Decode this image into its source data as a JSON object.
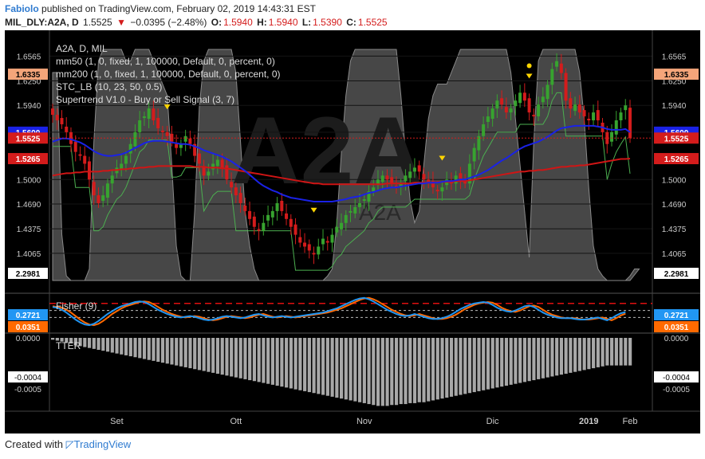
{
  "header": {
    "user": "Fabiolo",
    "published_text": "published on TradingView.com, February 02, 2019 14:43:31 EST",
    "symbol": "MIL_DLY:A2A, D",
    "last": "1.5525",
    "change_arrow": "▼",
    "change": "−0.0395 (−2.48%)",
    "o_label": "O:",
    "o": "1.5940",
    "h_label": "H:",
    "h": "1.5940",
    "l_label": "L:",
    "l": "1.5390",
    "c_label": "C:",
    "c": "1.5525"
  },
  "legend": {
    "line1": "A2A, D, MIL",
    "line2": "mm50 (1, 0, fixed, 1, 100000, Default, 0, percent, 0)",
    "line3": "mm200 (1, 0, fixed, 1, 100000, Default, 0, percent, 0)",
    "line4": "STC_LB (10, 23, 50, 0.5)",
    "line5": "Supertrend V1.0 - Buy or Sell Signal (3, 7)"
  },
  "watermark": {
    "big": "A2A",
    "small": "A2A"
  },
  "fisher_label": "Fisher (9)",
  "tter_label": "TTER",
  "footer": {
    "text": "Created with",
    "brand": "TradingView"
  },
  "colors": {
    "up": "#37a32f",
    "down": "#d41c1c",
    "mm50": "#1a22e6",
    "mm200": "#d01515",
    "stc": "#6e6e6e",
    "supertrend_up": "#4caf50",
    "supertrend_down": "#c8825a",
    "fisher": "#2196f3",
    "fisher_trigger": "#ff6a00",
    "hist": "#a8a8a8",
    "signal": "#ffd600"
  },
  "chart_data": [
    {
      "type": "candlestick",
      "title": "A2A, D, MIL",
      "y_ticks": [
        "1.6565",
        "1.6250",
        "1.5940",
        "1.5600",
        "1.5000",
        "1.4690",
        "1.4375",
        "1.4065",
        "2.2981"
      ],
      "y_range": [
        1.37,
        1.675
      ],
      "price_badges": [
        {
          "value": "1.6335",
          "color": "#f4a57a",
          "text_color": "#000"
        },
        {
          "value": "1.5600",
          "color": "#1a22e6",
          "text_color": "#fff"
        },
        {
          "value": "1.5525",
          "color": "#d41c1c",
          "text_color": "#fff"
        },
        {
          "value": "1.5265",
          "color": "#d41c1c",
          "text_color": "#fff"
        },
        {
          "value": "2.2981",
          "color": "#ffffff",
          "text_color": "#000"
        }
      ],
      "x_labels": [
        "Set",
        "Ott",
        "Nov",
        "Dic",
        "2019",
        "Feb"
      ],
      "close": [
        1.582,
        1.575,
        1.57,
        1.56,
        1.545,
        1.535,
        1.53,
        1.52,
        1.5,
        1.48,
        1.47,
        1.48,
        1.495,
        1.505,
        1.515,
        1.52,
        1.53,
        1.545,
        1.56,
        1.575,
        1.58,
        1.59,
        1.575,
        1.565,
        1.56,
        1.555,
        1.548,
        1.54,
        1.545,
        1.555,
        1.545,
        1.53,
        1.52,
        1.505,
        1.51,
        1.52,
        1.525,
        1.515,
        1.5,
        1.49,
        1.48,
        1.47,
        1.46,
        1.45,
        1.44,
        1.435,
        1.445,
        1.455,
        1.46,
        1.47,
        1.46,
        1.45,
        1.44,
        1.43,
        1.42,
        1.415,
        1.41,
        1.405,
        1.415,
        1.425,
        1.42,
        1.43,
        1.44,
        1.445,
        1.455,
        1.46,
        1.465,
        1.47,
        1.475,
        1.485,
        1.49,
        1.5,
        1.505,
        1.5,
        1.495,
        1.49,
        1.495,
        1.505,
        1.51,
        1.515,
        1.51,
        1.5,
        1.495,
        1.49,
        1.485,
        1.49,
        1.5,
        1.495,
        1.505,
        1.5,
        1.495,
        1.52,
        1.54,
        1.555,
        1.57,
        1.58,
        1.59,
        1.6,
        1.595,
        1.585,
        1.59,
        1.6,
        1.61,
        1.6,
        1.585,
        1.58,
        1.595,
        1.605,
        1.62,
        1.64,
        1.65,
        1.635,
        1.6,
        1.59,
        1.595,
        1.585,
        1.58,
        1.575,
        1.585,
        1.575,
        1.56,
        1.545,
        1.56,
        1.575,
        1.585,
        1.594,
        1.5525
      ],
      "mm50": [
        1.548,
        1.55,
        1.552,
        1.552,
        1.551,
        1.549,
        1.547,
        1.544,
        1.54,
        1.536,
        1.533,
        1.531,
        1.53,
        1.53,
        1.531,
        1.532,
        1.534,
        1.537,
        1.54,
        1.543,
        1.546,
        1.548,
        1.549,
        1.549,
        1.549,
        1.548,
        1.547,
        1.546,
        1.545,
        1.545,
        1.544,
        1.542,
        1.54,
        1.537,
        1.535,
        1.533,
        1.531,
        1.529,
        1.526,
        1.523,
        1.519,
        1.515,
        1.511,
        1.506,
        1.501,
        1.496,
        1.492,
        1.489,
        1.486,
        1.484,
        1.481,
        1.479,
        1.477,
        1.476,
        1.475,
        1.474,
        1.473,
        1.472,
        1.472,
        1.472,
        1.472,
        1.472,
        1.473,
        1.474,
        1.475,
        1.477,
        1.478,
        1.479,
        1.481,
        1.483,
        1.484,
        1.486,
        1.488,
        1.489,
        1.49,
        1.49,
        1.491,
        1.492,
        1.493,
        1.494,
        1.495,
        1.495,
        1.496,
        1.496,
        1.496,
        1.497,
        1.498,
        1.498,
        1.499,
        1.5,
        1.5,
        1.502,
        1.504,
        1.506,
        1.509,
        1.512,
        1.516,
        1.52,
        1.524,
        1.527,
        1.531,
        1.535,
        1.539,
        1.542,
        1.544,
        1.546,
        1.548,
        1.551,
        1.554,
        1.558,
        1.562,
        1.565,
        1.566,
        1.567,
        1.568,
        1.568,
        1.568,
        1.568,
        1.568,
        1.567,
        1.566,
        1.564,
        1.563,
        1.563,
        1.563,
        1.564,
        1.56
      ],
      "mm200": [
        1.505,
        1.506,
        1.507,
        1.508,
        1.508,
        1.509,
        1.509,
        1.51,
        1.51,
        1.51,
        1.51,
        1.511,
        1.511,
        1.512,
        1.512,
        1.513,
        1.513,
        1.514,
        1.514,
        1.515,
        1.515,
        1.516,
        1.516,
        1.517,
        1.517,
        1.517,
        1.517,
        1.517,
        1.517,
        1.517,
        1.517,
        1.516,
        1.516,
        1.516,
        1.515,
        1.515,
        1.515,
        1.514,
        1.514,
        1.513,
        1.512,
        1.511,
        1.51,
        1.509,
        1.508,
        1.507,
        1.506,
        1.505,
        1.504,
        1.503,
        1.502,
        1.501,
        1.5,
        1.499,
        1.498,
        1.497,
        1.496,
        1.495,
        1.495,
        1.494,
        1.494,
        1.494,
        1.494,
        1.494,
        1.494,
        1.494,
        1.494,
        1.494,
        1.494,
        1.494,
        1.494,
        1.494,
        1.494,
        1.495,
        1.495,
        1.495,
        1.495,
        1.495,
        1.495,
        1.496,
        1.496,
        1.496,
        1.496,
        1.496,
        1.497,
        1.497,
        1.497,
        1.497,
        1.498,
        1.498,
        1.498,
        1.499,
        1.5,
        1.501,
        1.502,
        1.503,
        1.504,
        1.505,
        1.506,
        1.507,
        1.508,
        1.509,
        1.51,
        1.51,
        1.511,
        1.511,
        1.512,
        1.512,
        1.513,
        1.514,
        1.515,
        1.516,
        1.516,
        1.517,
        1.517,
        1.518,
        1.518,
        1.519,
        1.52,
        1.521,
        1.522,
        1.523,
        1.524,
        1.525,
        1.526,
        1.526,
        1.5265
      ],
      "stc": [
        0.9,
        0.9,
        0.2,
        0.02,
        0.0,
        0.0,
        0.0,
        0.0,
        0.05,
        0.6,
        0.95,
        1.0,
        1.0,
        1.0,
        1.0,
        1.0,
        0.95,
        0.95,
        1.0,
        1.0,
        1.0,
        1.0,
        0.95,
        0.9,
        0.85,
        0.8,
        0.5,
        0.15,
        0.02,
        0.0,
        0.0,
        0.3,
        0.75,
        0.95,
        1.0,
        1.0,
        1.0,
        1.0,
        1.0,
        1.0,
        0.9,
        0.6,
        0.3,
        0.15,
        0.05,
        0.0,
        0.0,
        0.0,
        0.0,
        0.0,
        0.0,
        0.0,
        0.0,
        0.0,
        0.0,
        0.0,
        0.0,
        0.0,
        0.0,
        0.0,
        0.02,
        0.05,
        0.25,
        0.55,
        0.8,
        0.95,
        1.0,
        1.0,
        1.0,
        1.0,
        1.0,
        1.0,
        1.0,
        1.0,
        1.0,
        1.0,
        0.8,
        0.55,
        0.35,
        0.25,
        0.3,
        0.5,
        0.7,
        0.8,
        0.85,
        0.85,
        0.85,
        0.9,
        0.95,
        1.0,
        1.0,
        1.0,
        1.0,
        1.0,
        1.0,
        1.0,
        1.0,
        1.0,
        1.0,
        1.0,
        0.9,
        0.7,
        0.5,
        0.3,
        0.1,
        0.6,
        0.95,
        1.0,
        1.0,
        1.0,
        1.0,
        1.0,
        1.0,
        1.0,
        1.0,
        0.9,
        0.7,
        0.4,
        0.15,
        0.05,
        0.02,
        0.0,
        0.0,
        0.0,
        0.0,
        0.0,
        0.02,
        0.05,
        0.05
      ]
    },
    {
      "type": "line",
      "title": "Fisher (9)",
      "y_ticks": [
        "0.2721",
        "0.0351"
      ],
      "levels": [
        1.5,
        0.5,
        -0.5
      ],
      "fisher": [
        1.0,
        0.9,
        0.6,
        0.2,
        -0.3,
        -0.8,
        -1.2,
        -1.5,
        -1.6,
        -1.4,
        -1.0,
        -0.5,
        0.0,
        0.4,
        0.8,
        1.1,
        1.3,
        1.5,
        1.7,
        1.8,
        1.7,
        1.4,
        1.0,
        0.6,
        0.3,
        0.0,
        -0.2,
        -0.4,
        -0.5,
        -0.4,
        -0.3,
        -0.4,
        -0.6,
        -0.8,
        -0.9,
        -0.8,
        -0.6,
        -0.4,
        -0.3,
        -0.4,
        -0.5,
        -0.6,
        -0.5,
        -0.3,
        -0.1,
        0.0,
        -0.2,
        -0.4,
        -0.5,
        -0.4,
        -0.3,
        -0.4,
        -0.5,
        -0.4,
        -0.3,
        -0.2,
        -0.1,
        0.0,
        0.1,
        0.2,
        0.4,
        0.6,
        0.8,
        1.1,
        1.4,
        1.7,
        2.0,
        2.2,
        2.3,
        2.1,
        1.8,
        1.4,
        1.0,
        0.6,
        0.3,
        0.0,
        -0.2,
        -0.3,
        -0.2,
        0.0,
        -0.2,
        -0.4,
        -0.6,
        -0.7,
        -0.7,
        -0.6,
        -0.4,
        -0.1,
        0.3,
        0.7,
        1.0,
        1.3,
        1.5,
        1.6,
        1.7,
        1.6,
        1.3,
        0.9,
        0.6,
        0.4,
        0.3,
        0.5,
        0.8,
        1.1,
        1.2,
        1.0,
        0.6,
        0.2,
        -0.1,
        -0.3,
        -0.5,
        -0.6,
        -0.6,
        -0.6,
        -0.7,
        -0.8,
        -0.8,
        -0.7,
        -0.6,
        -0.5,
        -0.7,
        -0.9,
        -0.6,
        -0.2,
        0.1,
        0.2721
      ],
      "trigger": [
        1.1,
        1.0,
        0.9,
        0.6,
        0.2,
        -0.3,
        -0.8,
        -1.2,
        -1.5,
        -1.6,
        -1.4,
        -1.0,
        -0.5,
        0.0,
        0.4,
        0.8,
        1.1,
        1.3,
        1.5,
        1.7,
        1.8,
        1.7,
        1.4,
        1.0,
        0.6,
        0.3,
        0.0,
        -0.2,
        -0.4,
        -0.5,
        -0.4,
        -0.3,
        -0.4,
        -0.6,
        -0.8,
        -0.9,
        -0.8,
        -0.6,
        -0.4,
        -0.3,
        -0.4,
        -0.5,
        -0.6,
        -0.5,
        -0.3,
        -0.1,
        0.0,
        -0.2,
        -0.4,
        -0.5,
        -0.4,
        -0.3,
        -0.4,
        -0.5,
        -0.4,
        -0.3,
        -0.2,
        -0.1,
        0.0,
        0.1,
        0.2,
        0.4,
        0.6,
        0.8,
        1.1,
        1.4,
        1.7,
        2.0,
        2.2,
        2.3,
        2.1,
        1.8,
        1.4,
        1.0,
        0.6,
        0.3,
        0.0,
        -0.2,
        -0.3,
        -0.2,
        0.0,
        -0.2,
        -0.4,
        -0.6,
        -0.7,
        -0.7,
        -0.6,
        -0.4,
        -0.1,
        0.3,
        0.7,
        1.0,
        1.3,
        1.5,
        1.6,
        1.7,
        1.6,
        1.3,
        0.9,
        0.6,
        0.4,
        0.3,
        0.5,
        0.8,
        1.1,
        1.2,
        1.0,
        0.6,
        0.2,
        -0.1,
        -0.3,
        -0.5,
        -0.6,
        -0.6,
        -0.6,
        -0.7,
        -0.8,
        -0.8,
        -0.7,
        -0.6,
        -0.5,
        -0.7,
        -0.9,
        -0.6,
        -0.2,
        0.0351
      ]
    },
    {
      "type": "bar",
      "title": "TTER",
      "y_ticks": [
        "0.0000",
        "-0.0004",
        "-0.0005"
      ],
      "values": [
        -2e-05,
        -3e-05,
        -4e-05,
        -5e-05,
        -6e-05,
        -8e-05,
        -9e-05,
        -0.0001,
        -0.00011,
        -0.00012,
        -0.00013,
        -0.00014,
        -0.00015,
        -0.00016,
        -0.00017,
        -0.00018,
        -0.00019,
        -0.0002,
        -0.00021,
        -0.00022,
        -0.00023,
        -0.00024,
        -0.00025,
        -0.00026,
        -0.00027,
        -0.00028,
        -0.00029,
        -0.0003,
        -0.00031,
        -0.00032,
        -0.00033,
        -0.00034,
        -0.00035,
        -0.00036,
        -0.00037,
        -0.00038,
        -0.00039,
        -0.0004,
        -0.00041,
        -0.00042,
        -0.00043,
        -0.00044,
        -0.00045,
        -0.00046,
        -0.00047,
        -0.00048,
        -0.00049,
        -0.0005,
        -0.00051,
        -0.00052,
        -0.00053,
        -0.00054,
        -0.00055,
        -0.00056,
        -0.00057,
        -0.00058,
        -0.00059,
        -0.0006,
        -0.00061,
        -0.00062,
        -0.00063,
        -0.00064,
        -0.00065,
        -0.00066,
        -0.00067,
        -0.00068,
        -0.00069,
        -0.0007,
        -0.00071,
        -0.00072,
        -0.00073,
        -0.00074,
        -0.00074,
        -0.00074,
        -0.00073,
        -0.00073,
        -0.00072,
        -0.00072,
        -0.00071,
        -0.00071,
        -0.0007,
        -0.0007,
        -0.00069,
        -0.00068,
        -0.00067,
        -0.00066,
        -0.00065,
        -0.00064,
        -0.00063,
        -0.00062,
        -0.00061,
        -0.0006,
        -0.00059,
        -0.00058,
        -0.00057,
        -0.00056,
        -0.00055,
        -0.00054,
        -0.00053,
        -0.00052,
        -0.00051,
        -0.0005,
        -0.00049,
        -0.00048,
        -0.00047,
        -0.00046,
        -0.00045,
        -0.00044,
        -0.00043,
        -0.00042,
        -0.00041,
        -0.0004,
        -0.00039,
        -0.00038,
        -0.00037,
        -0.00036,
        -0.00035,
        -0.00034,
        -0.00033,
        -0.00032,
        -0.00031,
        -0.0003,
        -0.0003,
        -0.0003,
        -0.0003,
        -0.0003,
        -0.0003
      ]
    }
  ]
}
